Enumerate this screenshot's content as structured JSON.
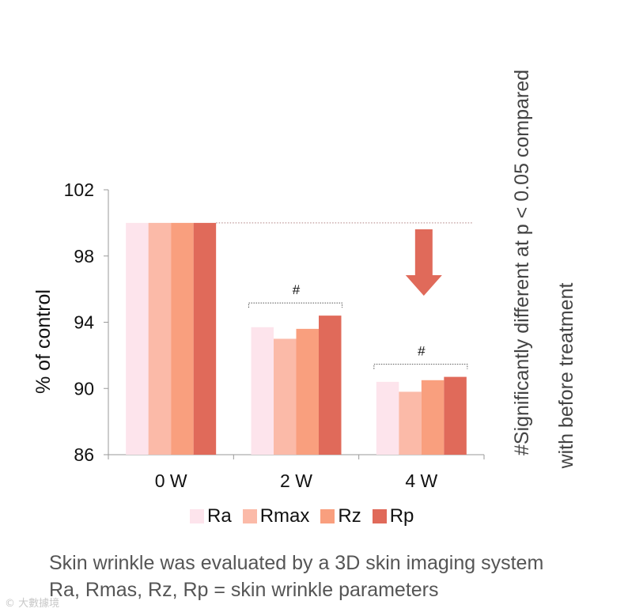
{
  "chart_data": {
    "type": "bar",
    "categories": [
      "0 W",
      "2 W",
      "4 W"
    ],
    "series": [
      {
        "name": "Ra",
        "color": "#fde4ec",
        "values": [
          100,
          93.7,
          90.4
        ]
      },
      {
        "name": "Rmax",
        "color": "#fbbaa8",
        "values": [
          100,
          93.0,
          89.8
        ]
      },
      {
        "name": "Rz",
        "color": "#f99f7e",
        "values": [
          100,
          93.6,
          90.5
        ]
      },
      {
        "name": "Rp",
        "color": "#e06a5a",
        "values": [
          100,
          94.4,
          90.7
        ]
      }
    ],
    "ylabel": "% of control",
    "ylim": [
      86,
      102
    ],
    "yticks": [
      86,
      90,
      94,
      98,
      102
    ],
    "grid": false,
    "legend_position": "bottom",
    "reference_line_value": 100,
    "significance_mark": "#",
    "significant_categories": [
      "2 W",
      "4 W"
    ],
    "side_note": [
      "#Significantly different at p < 0.05 compared",
      "with before treatment"
    ],
    "arrow_color": "#e06a5a"
  },
  "caption": {
    "line1": "Skin wrinkle was evaluated by a 3D skin imaging system",
    "line2": "Ra, Rmas, Rz, Rp = skin wrinkle parameters"
  },
  "watermark": "© 大數據境"
}
